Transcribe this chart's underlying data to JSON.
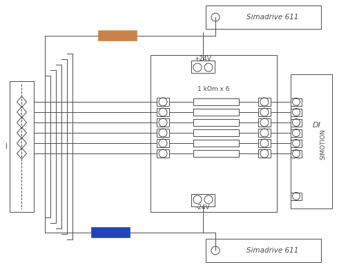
{
  "bg_color": "#ffffff",
  "line_color": "#4a4a4a",
  "resistor_color_top": "#c8834a",
  "resistor_color_bottom": "#2244bb",
  "simadrive_label": "Simadrive 611",
  "simotion_label": "SIMOTION",
  "di_label": "DI",
  "plus24_label": "+24V",
  "minus24_label": "-24V",
  "resistor_label": "1 kOm x 6",
  "fig_width": 4.91,
  "fig_height": 3.88,
  "dpi": 100
}
